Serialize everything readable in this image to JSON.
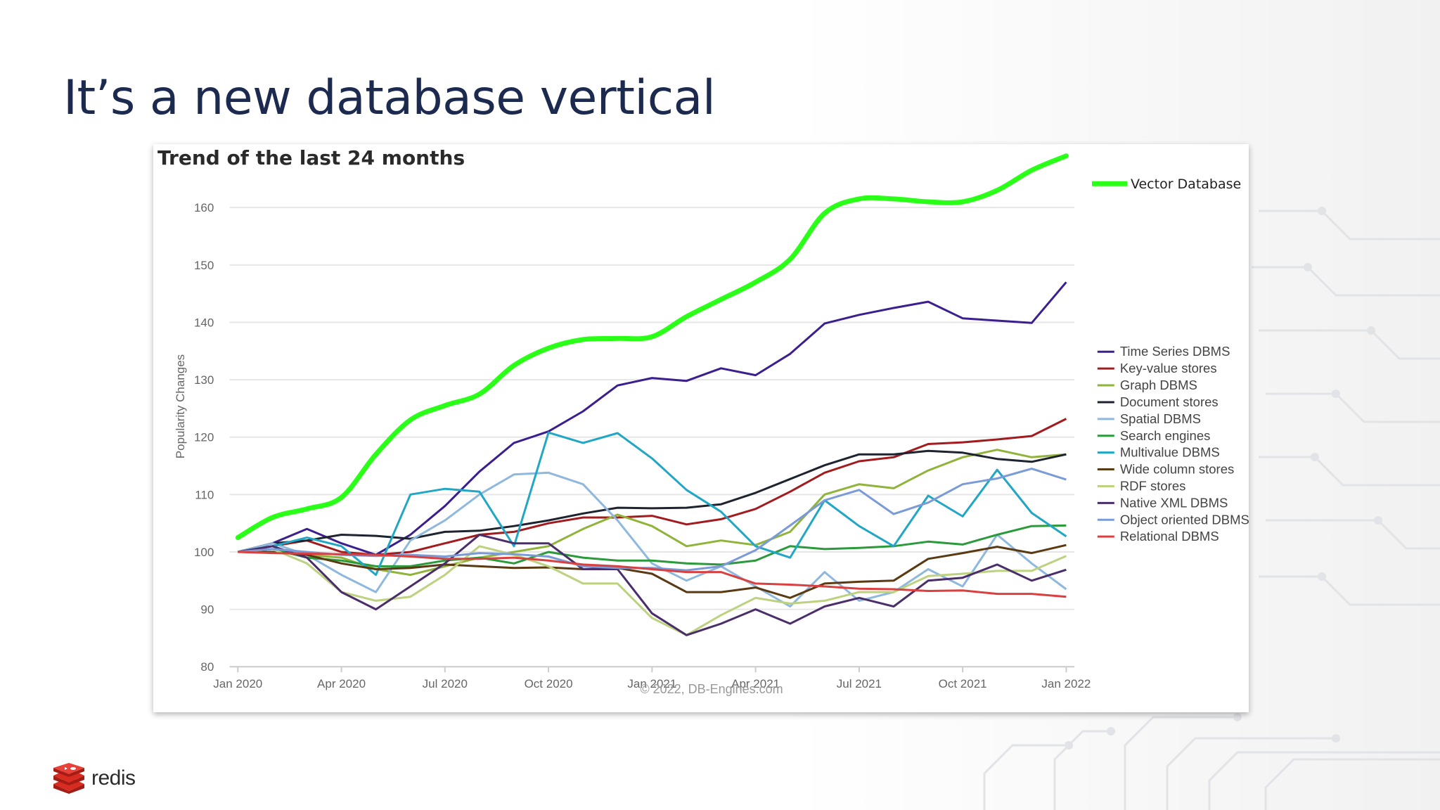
{
  "slide": {
    "title": "It’s a new database vertical",
    "brand_name": "redis",
    "brand_color": "#d82c20"
  },
  "chart_data": {
    "type": "line",
    "title": "Trend of the last 24 months",
    "ylabel": "Popularity Changes",
    "xlabel": "",
    "credit": "© 2022, DB-Engines.com",
    "ylim": [
      80,
      165
    ],
    "yticks": [
      80,
      90,
      100,
      110,
      120,
      130,
      140,
      150,
      160
    ],
    "x": [
      "2020-01",
      "2020-02",
      "2020-03",
      "2020-04",
      "2020-05",
      "2020-06",
      "2020-07",
      "2020-08",
      "2020-09",
      "2020-10",
      "2020-11",
      "2020-12",
      "2021-01",
      "2021-02",
      "2021-03",
      "2021-04",
      "2021-05",
      "2021-06",
      "2021-07",
      "2021-08",
      "2021-09",
      "2021-10",
      "2021-11",
      "2021-12",
      "2022-01"
    ],
    "xticks": [
      {
        "x": "2020-01",
        "label": "Jan 2020"
      },
      {
        "x": "2020-04",
        "label": "Apr 2020"
      },
      {
        "x": "2020-07",
        "label": "Jul 2020"
      },
      {
        "x": "2020-10",
        "label": "Oct 2020"
      },
      {
        "x": "2021-01",
        "label": "Jan 2021"
      },
      {
        "x": "2021-04",
        "label": "Apr 2021"
      },
      {
        "x": "2021-07",
        "label": "Jul 2021"
      },
      {
        "x": "2021-10",
        "label": "Oct 2021"
      },
      {
        "x": "2022-01",
        "label": "Jan 2022"
      }
    ],
    "grid": true,
    "legend_position": "right",
    "series": [
      {
        "name": "Time Series DBMS",
        "color": "#3b1f8f",
        "values": [
          100,
          101.5,
          104,
          101.5,
          99.5,
          103,
          108,
          114,
          119,
          121,
          124.5,
          129,
          130.3,
          129.8,
          132,
          130.8,
          134.5,
          139.8,
          141.3,
          142.5,
          143.6,
          140.7,
          140.3,
          139.9,
          147
        ]
      },
      {
        "name": "Key-value stores",
        "color": "#a21b1e",
        "values": [
          100,
          101,
          102,
          100,
          99.5,
          100,
          101.5,
          103,
          103.5,
          105,
          106,
          106,
          106.3,
          104.8,
          105.7,
          107.5,
          110.5,
          113.8,
          115.8,
          116.5,
          118.8,
          119.1,
          119.6,
          120.2,
          123.2
        ]
      },
      {
        "name": "Graph DBMS",
        "color": "#90b33a",
        "values": [
          100,
          100.5,
          99.5,
          99,
          97,
          96,
          97.5,
          99,
          100,
          101,
          104,
          106.5,
          104.5,
          101,
          102,
          101.2,
          103.5,
          110,
          111.8,
          111.1,
          114.2,
          116.5,
          117.8,
          116.5,
          117
        ]
      },
      {
        "name": "Document stores",
        "color": "#1d2430",
        "values": [
          100,
          101.5,
          102,
          103,
          102.8,
          102.3,
          103.5,
          103.7,
          104.5,
          105.5,
          106.7,
          107.7,
          107.6,
          107.7,
          108.3,
          110.3,
          112.7,
          115.1,
          117,
          117,
          117.6,
          117.3,
          116.2,
          115.7,
          117
        ]
      },
      {
        "name": "Spatial DBMS",
        "color": "#8fb8de",
        "values": [
          100,
          101.5,
          99.5,
          96,
          93,
          102,
          105.5,
          110,
          113.5,
          113.8,
          111.8,
          105.5,
          98,
          95,
          97.5,
          94,
          90.5,
          96.5,
          91.5,
          93,
          97,
          94,
          103,
          98,
          93.5
        ]
      },
      {
        "name": "Search engines",
        "color": "#2a9a3b",
        "values": [
          100,
          100.5,
          99,
          98.5,
          97.5,
          97.5,
          98.5,
          99,
          98,
          100,
          99,
          98.5,
          98.5,
          98,
          97.8,
          98.5,
          101,
          100.5,
          100.7,
          101,
          101.8,
          101.3,
          103,
          104.5,
          104.6
        ]
      },
      {
        "name": "Multivalue DBMS",
        "color": "#21a7c5",
        "values": [
          100,
          101,
          102.5,
          101,
          96,
          110,
          111,
          110.5,
          101,
          120.8,
          119,
          120.7,
          116.3,
          110.8,
          107,
          101,
          99,
          109,
          104.5,
          101,
          109.8,
          106.2,
          114.3,
          106.8,
          102.7
        ]
      },
      {
        "name": "Wide column stores",
        "color": "#5a3a12",
        "values": [
          100,
          100,
          99.5,
          98,
          97,
          97.2,
          97.8,
          97.5,
          97.2,
          97.3,
          97,
          97.2,
          96.2,
          93,
          93,
          93.8,
          92,
          94.5,
          94.8,
          95,
          98.8,
          99.8,
          100.9,
          99.8,
          101.2
        ]
      },
      {
        "name": "RDF stores",
        "color": "#bcd27e",
        "values": [
          100,
          100.5,
          98,
          93,
          91.5,
          92.2,
          96,
          101,
          99.5,
          97.5,
          94.5,
          94.5,
          88.5,
          85.5,
          89,
          92,
          91,
          91.5,
          93,
          93,
          95.8,
          96.2,
          96.7,
          96.7,
          99.3
        ]
      },
      {
        "name": "Native XML DBMS",
        "color": "#4a2e6b",
        "values": [
          100,
          101,
          99,
          93,
          90,
          94,
          98,
          103,
          101.5,
          101.5,
          97,
          97,
          89.3,
          85.5,
          87.5,
          90,
          87.5,
          90.5,
          92,
          90.5,
          95,
          95.5,
          97.8,
          95,
          96.9
        ]
      },
      {
        "name": "Object oriented DBMS",
        "color": "#7a9bd8",
        "values": [
          100,
          100.5,
          100,
          99.5,
          99.3,
          99.5,
          99.2,
          99.8,
          99.6,
          99.2,
          97.5,
          97.2,
          97.2,
          96.8,
          97.5,
          100.3,
          104.6,
          109,
          110.8,
          106.6,
          108.6,
          111.8,
          112.8,
          114.5,
          112.6
        ]
      },
      {
        "name": "Relational DBMS",
        "color": "#d94040",
        "values": [
          100,
          99.8,
          99.7,
          99.6,
          99.5,
          99.2,
          98.8,
          98.8,
          99,
          98.5,
          97.8,
          97.5,
          97,
          96.5,
          96.5,
          94.5,
          94.3,
          94,
          93.6,
          93.5,
          93.2,
          93.3,
          92.7,
          92.7,
          92.2
        ]
      }
    ],
    "overlay": {
      "name": "Vector Database",
      "color": "#2aff17",
      "values": [
        102.5,
        106,
        107.5,
        109.5,
        117,
        123,
        125.5,
        127.5,
        132.5,
        135.5,
        137,
        137.2,
        137.5,
        141,
        144,
        147,
        151,
        159,
        161.5,
        161.5,
        161,
        161,
        163,
        166.5,
        169
      ]
    }
  }
}
